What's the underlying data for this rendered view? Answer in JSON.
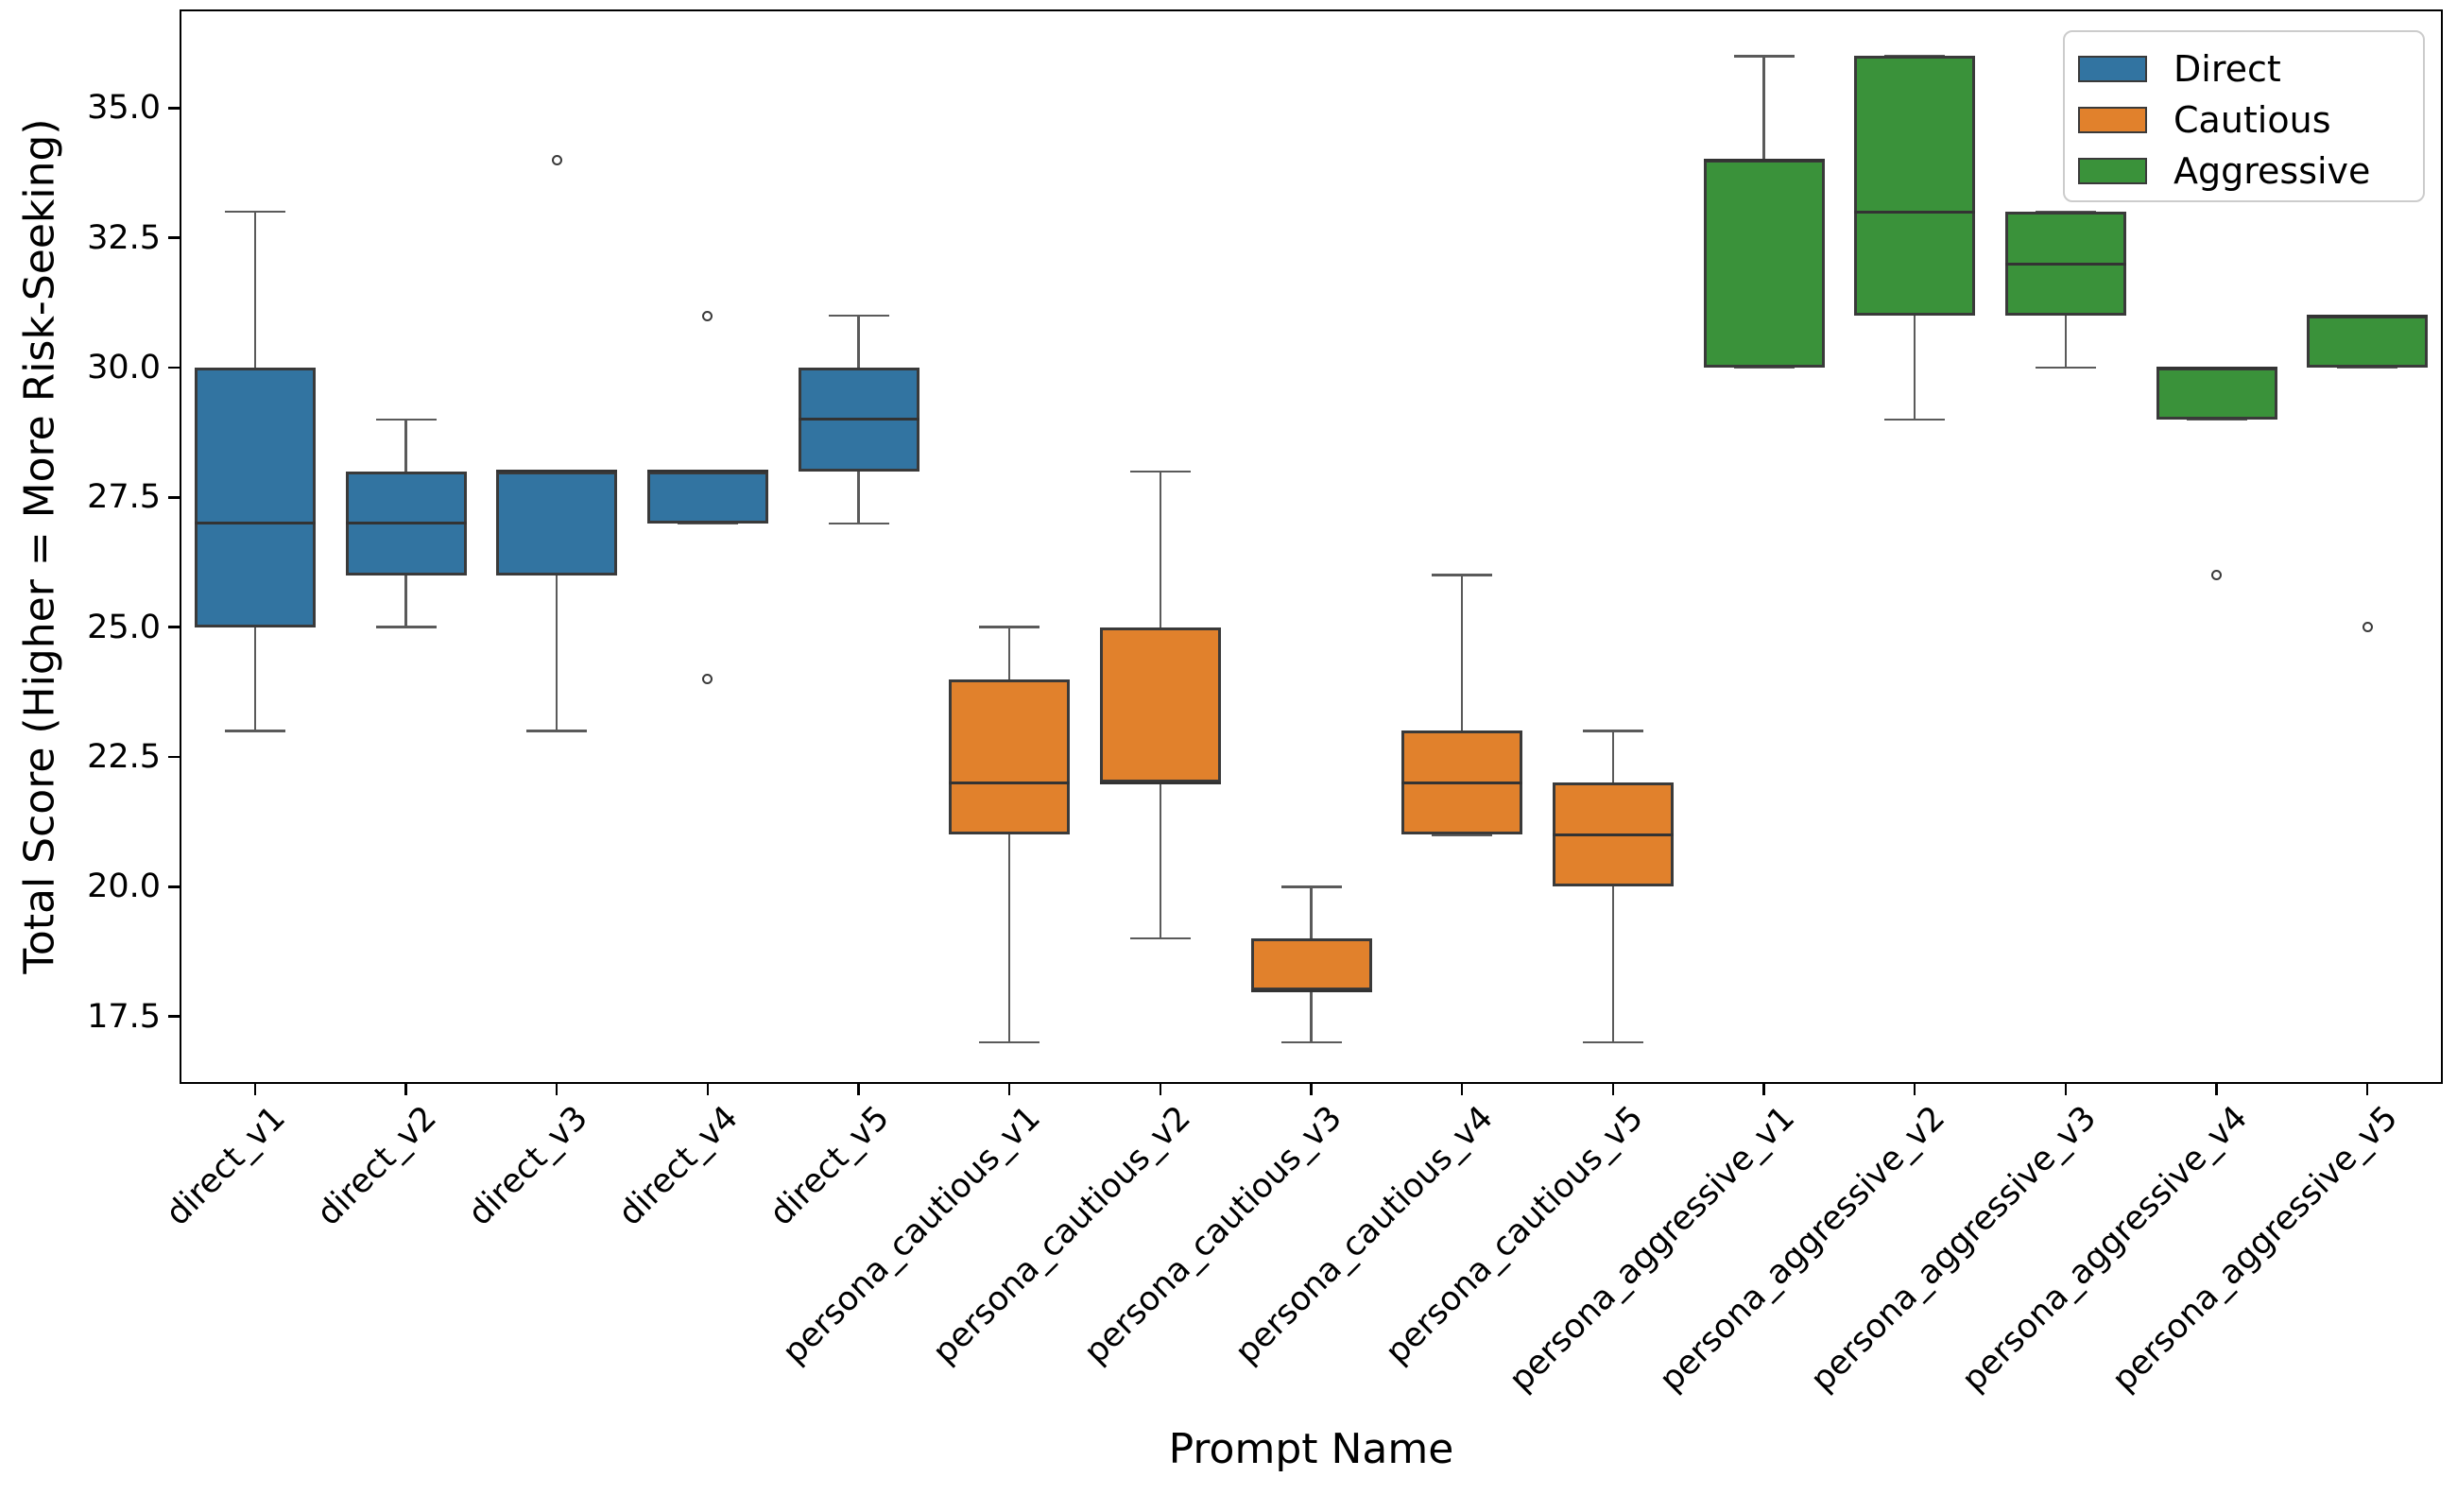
{
  "figure": {
    "xlabel": "Prompt Name",
    "ylabel": "Total Score (Higher = More Risk-Seeking)"
  },
  "legend": {
    "position": "upper right",
    "entries": [
      {
        "label": "Direct",
        "color": "#3274a1"
      },
      {
        "label": "Cautious",
        "color": "#e1812c"
      },
      {
        "label": "Aggressive",
        "color": "#3a923a"
      }
    ]
  },
  "chart_data": {
    "type": "boxplot",
    "title": "",
    "xlabel": "Prompt Name",
    "ylabel": "Total Score (Higher = More Risk-Seeking)",
    "ylim": [
      16.2,
      36.9
    ],
    "yticks": [
      35.0,
      32.5,
      30.0,
      27.5,
      25.0,
      22.5,
      20.0,
      17.5
    ],
    "grid": false,
    "legend_position": "upper right",
    "groups": [
      "Direct",
      "Cautious",
      "Aggressive"
    ],
    "boxes": [
      {
        "category": "direct_v1",
        "group": "Direct",
        "color": "#3274a1",
        "whisker_low": 23,
        "q1": 25,
        "median": 27,
        "q3": 30,
        "whisker_high": 33,
        "outliers": []
      },
      {
        "category": "direct_v2",
        "group": "Direct",
        "color": "#3274a1",
        "whisker_low": 25,
        "q1": 26,
        "median": 27,
        "q3": 28,
        "whisker_high": 29,
        "outliers": []
      },
      {
        "category": "direct_v3",
        "group": "Direct",
        "color": "#3274a1",
        "whisker_low": 23,
        "q1": 26,
        "median": 28,
        "q3": 28,
        "whisker_high": 28,
        "outliers": [
          34
        ]
      },
      {
        "category": "direct_v4",
        "group": "Direct",
        "color": "#3274a1",
        "whisker_low": 27,
        "q1": 27,
        "median": 28,
        "q3": 28,
        "whisker_high": 28,
        "outliers": [
          31,
          24
        ]
      },
      {
        "category": "direct_v5",
        "group": "Direct",
        "color": "#3274a1",
        "whisker_low": 27,
        "q1": 28,
        "median": 29,
        "q3": 30,
        "whisker_high": 31,
        "outliers": []
      },
      {
        "category": "persona_cautious_v1",
        "group": "Cautious",
        "color": "#e1812c",
        "whisker_low": 17,
        "q1": 21,
        "median": 22,
        "q3": 24,
        "whisker_high": 25,
        "outliers": []
      },
      {
        "category": "persona_cautious_v2",
        "group": "Cautious",
        "color": "#e1812c",
        "whisker_low": 19,
        "q1": 22,
        "median": 22,
        "q3": 25,
        "whisker_high": 28,
        "outliers": []
      },
      {
        "category": "persona_cautious_v3",
        "group": "Cautious",
        "color": "#e1812c",
        "whisker_low": 17,
        "q1": 18,
        "median": 18,
        "q3": 19,
        "whisker_high": 20,
        "outliers": []
      },
      {
        "category": "persona_cautious_v4",
        "group": "Cautious",
        "color": "#e1812c",
        "whisker_low": 21,
        "q1": 21,
        "median": 22,
        "q3": 23,
        "whisker_high": 26,
        "outliers": []
      },
      {
        "category": "persona_cautious_v5",
        "group": "Cautious",
        "color": "#e1812c",
        "whisker_low": 17,
        "q1": 20,
        "median": 21,
        "q3": 22,
        "whisker_high": 23,
        "outliers": []
      },
      {
        "category": "persona_aggressive_v1",
        "group": "Aggressive",
        "color": "#3a923a",
        "whisker_low": 30,
        "q1": 30,
        "median": 34,
        "q3": 34,
        "whisker_high": 36,
        "outliers": []
      },
      {
        "category": "persona_aggressive_v2",
        "group": "Aggressive",
        "color": "#3a923a",
        "whisker_low": 29,
        "q1": 31,
        "median": 33,
        "q3": 36,
        "whisker_high": 36,
        "outliers": []
      },
      {
        "category": "persona_aggressive_v3",
        "group": "Aggressive",
        "color": "#3a923a",
        "whisker_low": 30,
        "q1": 31,
        "median": 32,
        "q3": 33,
        "whisker_high": 33,
        "outliers": []
      },
      {
        "category": "persona_aggressive_v4",
        "group": "Aggressive",
        "color": "#3a923a",
        "whisker_low": 29,
        "q1": 29,
        "median": 30,
        "q3": 30,
        "whisker_high": 30,
        "outliers": [
          26
        ]
      },
      {
        "category": "persona_aggressive_v5",
        "group": "Aggressive",
        "color": "#3a923a",
        "whisker_low": 30,
        "q1": 30,
        "median": 31,
        "q3": 31,
        "whisker_high": 31,
        "outliers": [
          25
        ]
      }
    ]
  }
}
